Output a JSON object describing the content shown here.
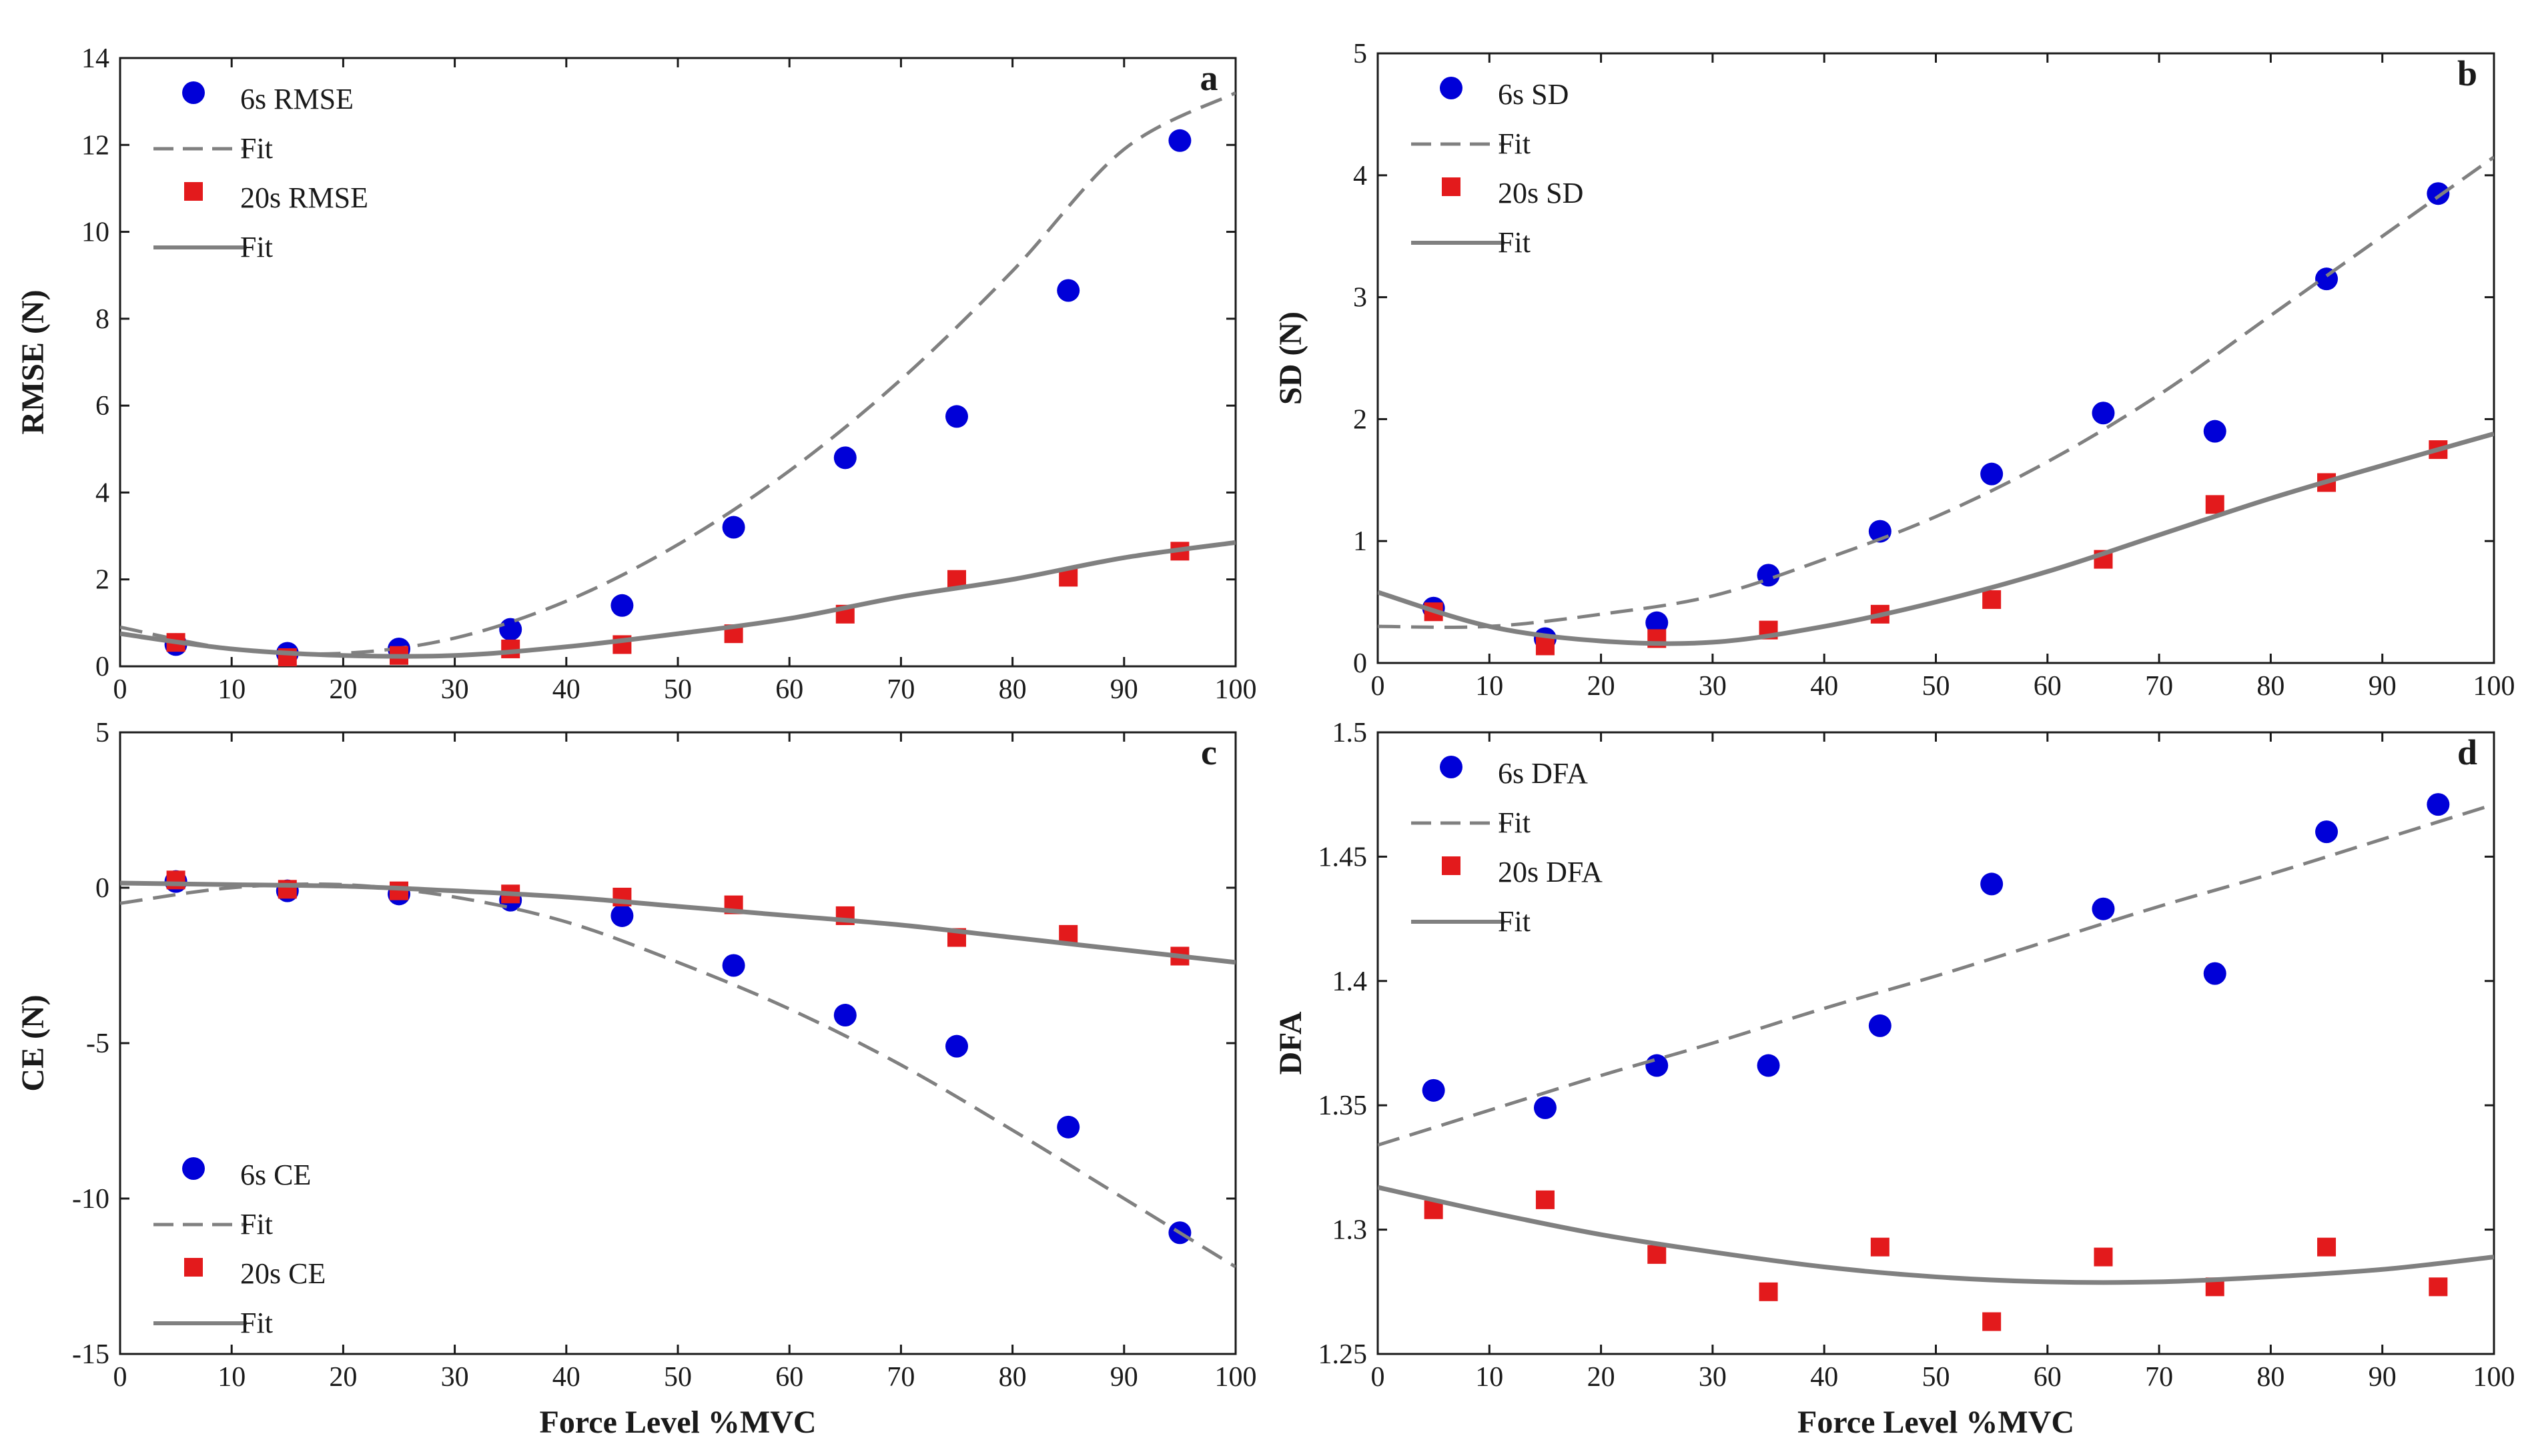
{
  "chart_data": [
    {
      "panel": "a",
      "type": "scatter",
      "xlabel": "",
      "ylabel": "RMSE (N)",
      "xlim": [
        0,
        100
      ],
      "ylim": [
        0,
        14
      ],
      "xticks": [
        "0",
        "10",
        "20",
        "30",
        "40",
        "50",
        "60",
        "70",
        "80",
        "90",
        "100"
      ],
      "yticks": [
        "0",
        "2",
        "4",
        "6",
        "8",
        "10",
        "12",
        "14"
      ],
      "legend_position": "top-left",
      "series": [
        {
          "name": "6s RMSE",
          "marker": "circle",
          "color": "#0000d8",
          "x": [
            5,
            15,
            25,
            35,
            45,
            55,
            65,
            75,
            85,
            95
          ],
          "y": [
            0.5,
            0.3,
            0.4,
            0.85,
            1.4,
            3.2,
            4.8,
            5.75,
            8.65,
            12.1
          ]
        },
        {
          "name": "Fit",
          "style": "dashed",
          "color": "#808080",
          "x": [
            0,
            10,
            20,
            30,
            40,
            50,
            60,
            70,
            80,
            90,
            100
          ],
          "y": [
            0.9,
            0.4,
            0.3,
            0.65,
            1.5,
            2.8,
            4.5,
            6.6,
            9.1,
            11.9,
            13.2
          ]
        },
        {
          "name": "20s RMSE",
          "marker": "square",
          "color": "#e31a1c",
          "x": [
            5,
            15,
            25,
            35,
            45,
            55,
            65,
            75,
            85,
            95
          ],
          "y": [
            0.55,
            0.2,
            0.25,
            0.4,
            0.5,
            0.75,
            1.2,
            2.0,
            2.05,
            2.65
          ]
        },
        {
          "name": "Fit",
          "style": "solid",
          "color": "#808080",
          "x": [
            0,
            10,
            20,
            30,
            40,
            50,
            60,
            70,
            80,
            90,
            100
          ],
          "y": [
            0.75,
            0.4,
            0.25,
            0.25,
            0.45,
            0.75,
            1.1,
            1.6,
            2.0,
            2.5,
            2.85
          ]
        }
      ]
    },
    {
      "panel": "b",
      "type": "scatter",
      "xlabel": "",
      "ylabel": "SD (N)",
      "xlim": [
        0,
        100
      ],
      "ylim": [
        0,
        5
      ],
      "xticks": [
        "0",
        "10",
        "20",
        "30",
        "40",
        "50",
        "60",
        "70",
        "80",
        "90",
        "100"
      ],
      "yticks": [
        "0",
        "1",
        "2",
        "3",
        "4",
        "5"
      ],
      "legend_position": "top-left",
      "series": [
        {
          "name": "6s SD",
          "marker": "circle",
          "color": "#0000d8",
          "x": [
            5,
            15,
            25,
            35,
            45,
            55,
            65,
            75,
            85,
            95
          ],
          "y": [
            0.45,
            0.2,
            0.33,
            0.72,
            1.08,
            1.55,
            2.05,
            1.9,
            3.15,
            3.85
          ]
        },
        {
          "name": "Fit",
          "style": "dashed",
          "color": "#808080",
          "x": [
            0,
            10,
            20,
            30,
            40,
            50,
            60,
            70,
            80,
            90,
            100
          ],
          "y": [
            0.3,
            0.3,
            0.4,
            0.55,
            0.85,
            1.2,
            1.65,
            2.2,
            2.85,
            3.5,
            4.15
          ]
        },
        {
          "name": "20s SD",
          "marker": "square",
          "color": "#e31a1c",
          "x": [
            5,
            15,
            25,
            35,
            45,
            55,
            65,
            75,
            85,
            95
          ],
          "y": [
            0.42,
            0.14,
            0.2,
            0.27,
            0.4,
            0.52,
            0.85,
            1.3,
            1.48,
            1.75
          ]
        },
        {
          "name": "Fit",
          "style": "solid",
          "color": "#808080",
          "x": [
            0,
            10,
            20,
            30,
            40,
            50,
            60,
            70,
            80,
            90,
            100
          ],
          "y": [
            0.58,
            0.3,
            0.18,
            0.17,
            0.3,
            0.5,
            0.75,
            1.05,
            1.35,
            1.62,
            1.88
          ]
        }
      ]
    },
    {
      "panel": "c",
      "type": "scatter",
      "xlabel": "Force Level %MVC",
      "ylabel": "CE (N)",
      "xlim": [
        0,
        100
      ],
      "ylim": [
        -15,
        5
      ],
      "xticks": [
        "0",
        "10",
        "20",
        "30",
        "40",
        "50",
        "60",
        "70",
        "80",
        "90",
        "100"
      ],
      "yticks": [
        "-15",
        "-10",
        "-5",
        "0",
        "5"
      ],
      "legend_position": "bottom-left",
      "series": [
        {
          "name": "6s CE",
          "marker": "circle",
          "color": "#0000d8",
          "x": [
            5,
            15,
            25,
            35,
            45,
            55,
            65,
            75,
            85,
            95
          ],
          "y": [
            0.2,
            -0.1,
            -0.2,
            -0.4,
            -0.9,
            -2.5,
            -4.1,
            -5.1,
            -7.7,
            -11.1
          ]
        },
        {
          "name": "Fit",
          "style": "dashed",
          "color": "#808080",
          "x": [
            0,
            10,
            20,
            30,
            40,
            50,
            60,
            70,
            80,
            90,
            100
          ],
          "y": [
            -0.5,
            0.0,
            0.1,
            -0.3,
            -1.1,
            -2.4,
            -3.9,
            -5.7,
            -7.8,
            -10.0,
            -12.2
          ]
        },
        {
          "name": "20s CE",
          "marker": "square",
          "color": "#e31a1c",
          "x": [
            5,
            15,
            25,
            35,
            45,
            55,
            65,
            75,
            85,
            95
          ],
          "y": [
            0.25,
            -0.05,
            -0.1,
            -0.2,
            -0.3,
            -0.55,
            -0.9,
            -1.6,
            -1.5,
            -2.2
          ]
        },
        {
          "name": "Fit",
          "style": "solid",
          "color": "#808080",
          "x": [
            0,
            10,
            20,
            30,
            40,
            50,
            60,
            70,
            80,
            90,
            100
          ],
          "y": [
            0.15,
            0.1,
            0.05,
            -0.1,
            -0.3,
            -0.6,
            -0.9,
            -1.2,
            -1.6,
            -2.0,
            -2.4
          ]
        }
      ]
    },
    {
      "panel": "d",
      "type": "scatter",
      "xlabel": "Force Level %MVC",
      "ylabel": "DFA",
      "xlim": [
        0,
        100
      ],
      "ylim": [
        1.25,
        1.5
      ],
      "xticks": [
        "0",
        "10",
        "20",
        "30",
        "40",
        "50",
        "60",
        "70",
        "80",
        "90",
        "100"
      ],
      "yticks": [
        "1.25",
        "1.3",
        "1.35",
        "1.4",
        "1.45",
        "1.5"
      ],
      "legend_position": "top-left",
      "series": [
        {
          "name": "6s DFA",
          "marker": "circle",
          "color": "#0000d8",
          "x": [
            5,
            15,
            25,
            35,
            45,
            55,
            65,
            75,
            85,
            95
          ],
          "y": [
            1.356,
            1.349,
            1.366,
            1.366,
            1.382,
            1.439,
            1.429,
            1.403,
            1.46,
            1.471
          ]
        },
        {
          "name": "Fit",
          "style": "dashed",
          "color": "#808080",
          "x": [
            0,
            10,
            20,
            30,
            40,
            50,
            60,
            70,
            80,
            90,
            100
          ],
          "y": [
            1.334,
            1.348,
            1.362,
            1.375,
            1.389,
            1.402,
            1.416,
            1.43,
            1.443,
            1.457,
            1.471
          ]
        },
        {
          "name": "20s DFA",
          "marker": "square",
          "color": "#e31a1c",
          "x": [
            5,
            15,
            25,
            35,
            45,
            55,
            65,
            75,
            85,
            95
          ],
          "y": [
            1.308,
            1.312,
            1.29,
            1.275,
            1.293,
            1.263,
            1.289,
            1.277,
            1.293,
            1.277
          ]
        },
        {
          "name": "Fit",
          "style": "solid",
          "color": "#808080",
          "x": [
            0,
            10,
            20,
            30,
            40,
            50,
            60,
            70,
            80,
            90,
            100
          ],
          "y": [
            1.317,
            1.307,
            1.298,
            1.291,
            1.285,
            1.281,
            1.279,
            1.279,
            1.281,
            1.284,
            1.289
          ]
        }
      ]
    }
  ]
}
